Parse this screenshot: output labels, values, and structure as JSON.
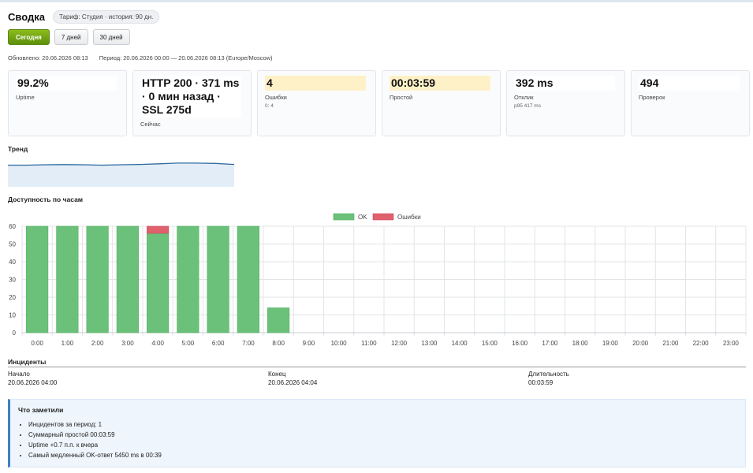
{
  "header": {
    "title": "Сводка",
    "plan_badge": "Тариф: Студия · история: 90 дн."
  },
  "range_buttons": [
    "Сегодня",
    "7 дней",
    "30 дней"
  ],
  "meta": {
    "updated": "Обновлено: 20.06.2026 08:13",
    "period": "Период: 20.06.2026 00:00 — 20.06.2026 08:13 (Europe/Moscow)"
  },
  "cards": [
    {
      "value": "99.2%",
      "label": "Uptime",
      "sub": ""
    },
    {
      "value": "HTTP 200 · 371 ms · 0 мин назад · SSL 275d",
      "label": "Сейчас",
      "sub": ""
    },
    {
      "value": "4",
      "label": "Ошибки",
      "sub": "0: 4"
    },
    {
      "value": "00:03:59",
      "label": "Простой",
      "sub": ""
    },
    {
      "value": "392 ms",
      "label": "Отклик",
      "sub": "p95 417 ms"
    },
    {
      "value": "494",
      "label": "Проверок",
      "sub": ""
    }
  ],
  "trend": {
    "title": "Тренд"
  },
  "hourly": {
    "title": "Доступность по часам"
  },
  "colors": {
    "ok": "#6cc17a",
    "errors": "#e0616e",
    "trend_line": "#2f6a9e",
    "trend_fill": "#e3edf7",
    "accent_button": "#72a514",
    "warn_card": "#fff1c7"
  },
  "chart_data": [
    {
      "type": "line",
      "title": "Тренд",
      "x": [
        0,
        1,
        2,
        3,
        4,
        5,
        6,
        7,
        8,
        9,
        10,
        11,
        12
      ],
      "series": [
        {
          "values": [
            0.64,
            0.64,
            0.65,
            0.655,
            0.65,
            0.64,
            0.65,
            0.66,
            0.68,
            0.7,
            0.7,
            0.69,
            0.66
          ]
        }
      ],
      "ylim": [
        0,
        1
      ],
      "grid": false,
      "axes": false
    },
    {
      "type": "bar",
      "stacked": true,
      "title": "Доступность по часам",
      "categories": [
        "0:00",
        "1:00",
        "2:00",
        "3:00",
        "4:00",
        "5:00",
        "6:00",
        "7:00",
        "8:00",
        "9:00",
        "10:00",
        "11:00",
        "12:00",
        "13:00",
        "14:00",
        "15:00",
        "16:00",
        "17:00",
        "18:00",
        "19:00",
        "20:00",
        "21:00",
        "22:00",
        "23:00"
      ],
      "series": [
        {
          "name": "OK",
          "values": [
            60,
            60,
            60,
            60,
            56,
            60,
            60,
            60,
            14,
            0,
            0,
            0,
            0,
            0,
            0,
            0,
            0,
            0,
            0,
            0,
            0,
            0,
            0,
            0
          ]
        },
        {
          "name": "Ошибки",
          "values": [
            0,
            0,
            0,
            0,
            4,
            0,
            0,
            0,
            0,
            0,
            0,
            0,
            0,
            0,
            0,
            0,
            0,
            0,
            0,
            0,
            0,
            0,
            0,
            0
          ]
        }
      ],
      "ylim": [
        0,
        60
      ],
      "yticks": [
        0,
        10,
        20,
        30,
        40,
        50,
        60
      ],
      "grid": true,
      "legend": "top-center"
    }
  ],
  "incidents": {
    "title": "Инциденты",
    "columns": [
      "Начало",
      "Конец",
      "Длительность"
    ],
    "rows": [
      [
        "20.06.2026 04:00",
        "20.06.2026 04:04",
        "00:03:59"
      ]
    ]
  },
  "notes": {
    "title": "Что заметили",
    "items": [
      "Инцидентов за период: 1",
      "Суммарный простой 00:03:59",
      "Uptime +0.7 п.п. к вчера",
      "Самый медленный OK-ответ 5450 ms в 00:39"
    ]
  }
}
